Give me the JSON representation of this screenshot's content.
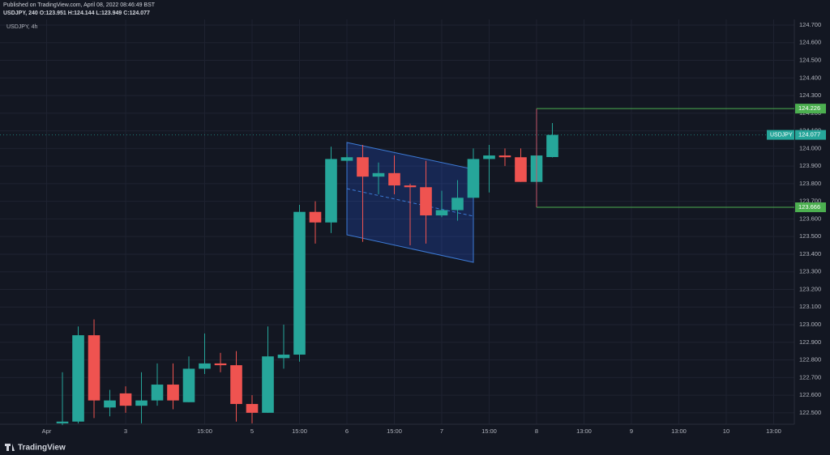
{
  "chart_data": {
    "type": "candlestick",
    "published": "Published on TradingView.com, April 08, 2022 08:46:49 BST",
    "header": "USDJPY, 240 O:123.951 H:124.144 L:123.949 C:124.077",
    "symbol_label": "USDJPY, 4h",
    "last_price_symbol": "USDJPY",
    "brand": "TradingView",
    "up_color": "#26a69a",
    "down_color": "#ef5350",
    "level_color": "#4caf50",
    "x": [
      -18,
      -17,
      -16,
      -15,
      -14,
      -13,
      -12,
      -11,
      -10,
      -9,
      -8,
      -7,
      -6,
      -5,
      -4,
      -3,
      -2,
      -1,
      0,
      1,
      2,
      3,
      4,
      5,
      6,
      7,
      8,
      9,
      10,
      11,
      12,
      13
    ],
    "open": [
      122.44,
      122.45,
      122.94,
      122.53,
      122.61,
      122.54,
      122.57,
      122.66,
      122.56,
      122.75,
      122.78,
      122.77,
      122.55,
      122.5,
      122.81,
      122.83,
      123.64,
      123.58,
      123.93,
      123.95,
      123.84,
      123.86,
      123.79,
      123.78,
      123.62,
      123.65,
      123.72,
      123.94,
      123.96,
      123.95,
      123.81,
      123.951
    ],
    "high": [
      122.73,
      122.99,
      123.03,
      122.63,
      122.65,
      122.73,
      122.78,
      122.78,
      122.82,
      122.95,
      122.84,
      122.85,
      122.6,
      122.99,
      123.0,
      123.68,
      123.7,
      124.01,
      123.97,
      124.02,
      123.92,
      123.96,
      123.8,
      123.93,
      123.76,
      123.82,
      124.0,
      124.02,
      124.0,
      124.0,
      124.03,
      124.144
    ],
    "low": [
      122.43,
      122.44,
      122.47,
      122.48,
      122.5,
      122.44,
      122.54,
      122.52,
      122.56,
      122.72,
      122.73,
      122.45,
      122.44,
      122.5,
      122.75,
      122.79,
      123.46,
      123.52,
      123.92,
      123.47,
      123.74,
      123.74,
      123.45,
      123.46,
      123.61,
      123.59,
      123.72,
      123.75,
      123.9,
      123.81,
      123.79,
      123.949
    ],
    "close": [
      122.45,
      122.94,
      122.57,
      122.57,
      122.54,
      122.57,
      122.66,
      122.57,
      122.75,
      122.78,
      122.77,
      122.55,
      122.5,
      122.82,
      122.83,
      123.64,
      123.58,
      123.94,
      123.95,
      123.84,
      123.86,
      123.79,
      123.78,
      123.62,
      123.65,
      123.72,
      123.94,
      123.96,
      123.95,
      123.81,
      123.96,
      124.077
    ],
    "xlim": [
      -21.95,
      28.31
    ],
    "xticks": [
      {
        "value": -19,
        "label": "Apr"
      },
      {
        "value": -14,
        "label": "3"
      },
      {
        "value": -9,
        "label": "15:00"
      },
      {
        "value": -6,
        "label": "5"
      },
      {
        "value": -3,
        "label": "15:00"
      },
      {
        "value": 0,
        "label": "6"
      },
      {
        "value": 3,
        "label": "15:00"
      },
      {
        "value": 6,
        "label": "7"
      },
      {
        "value": 9,
        "label": "15:00"
      },
      {
        "value": 12,
        "label": "8"
      },
      {
        "value": 15,
        "label": "13:00"
      },
      {
        "value": 18,
        "label": "9"
      },
      {
        "value": 21,
        "label": "13:00"
      },
      {
        "value": 24,
        "label": "10"
      },
      {
        "value": 27,
        "label": "13:00"
      }
    ],
    "ylim": [
      122.435,
      124.732
    ],
    "yticks": [
      {
        "value": 122.5,
        "label": "122.500"
      },
      {
        "value": 122.6,
        "label": "122.600"
      },
      {
        "value": 122.7,
        "label": "122.700"
      },
      {
        "value": 122.8,
        "label": "122.800"
      },
      {
        "value": 122.9,
        "label": "122.900"
      },
      {
        "value": 123.0,
        "label": "123.000"
      },
      {
        "value": 123.1,
        "label": "123.100"
      },
      {
        "value": 123.2,
        "label": "123.200"
      },
      {
        "value": 123.3,
        "label": "123.300"
      },
      {
        "value": 123.4,
        "label": "123.400"
      },
      {
        "value": 123.5,
        "label": "123.500"
      },
      {
        "value": 123.6,
        "label": "123.600"
      },
      {
        "value": 123.7,
        "label": "123.700"
      },
      {
        "value": 123.8,
        "label": "123.800"
      },
      {
        "value": 123.9,
        "label": "123.900"
      },
      {
        "value": 124.0,
        "label": "124.000"
      },
      {
        "value": 124.1,
        "label": "124.100"
      },
      {
        "value": 124.2,
        "label": "124.200"
      },
      {
        "value": 124.3,
        "label": "124.300"
      },
      {
        "value": 124.4,
        "label": "124.400"
      },
      {
        "value": 124.5,
        "label": "124.500"
      },
      {
        "value": 124.6,
        "label": "124.600"
      },
      {
        "value": 124.7,
        "label": "124.700"
      }
    ],
    "price_levels": [
      124.226,
      123.666
    ],
    "grid": true
  }
}
